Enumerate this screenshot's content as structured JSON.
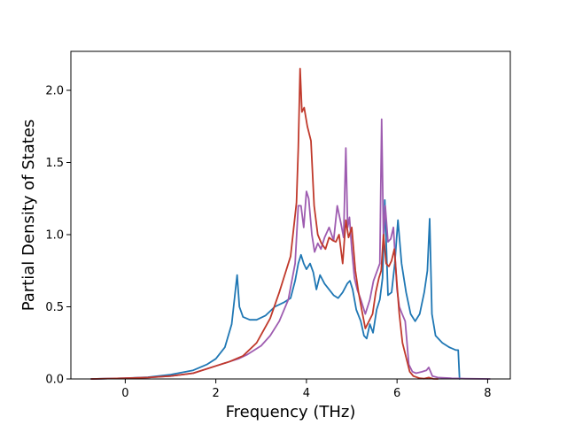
{
  "chart_data": {
    "type": "line",
    "title": "",
    "xlabel": "Frequency (THz)",
    "ylabel": "Partial Density of States",
    "xlim": [
      -1.2,
      8.5
    ],
    "ylim": [
      0,
      2.27
    ],
    "xticks": [
      0,
      2,
      4,
      6,
      8
    ],
    "xtick_labels": [
      "0",
      "2",
      "4",
      "6",
      "8"
    ],
    "yticks": [
      0.0,
      0.5,
      1.0,
      1.5,
      2.0
    ],
    "ytick_labels": [
      "0.0",
      "0.5",
      "1.0",
      "1.5",
      "2.0"
    ],
    "grid": false,
    "legend": "none",
    "series": [
      {
        "color": "#1f77b4",
        "x": [
          -0.75,
          0,
          0.5,
          1.0,
          1.5,
          1.8,
          2.0,
          2.2,
          2.35,
          2.42,
          2.47,
          2.52,
          2.6,
          2.75,
          2.9,
          3.1,
          3.3,
          3.5,
          3.65,
          3.75,
          3.82,
          3.88,
          3.94,
          4.0,
          4.08,
          4.15,
          4.22,
          4.3,
          4.4,
          4.5,
          4.6,
          4.7,
          4.8,
          4.9,
          4.96,
          5.02,
          5.1,
          5.2,
          5.27,
          5.33,
          5.4,
          5.47,
          5.55,
          5.62,
          5.68,
          5.73,
          5.8,
          5.88,
          5.95,
          6.02,
          6.1,
          6.2,
          6.3,
          6.4,
          6.5,
          6.6,
          6.67,
          6.72,
          6.77,
          6.85,
          7.0,
          7.15,
          7.3,
          7.35,
          7.38
        ],
        "y": [
          0.0,
          0.005,
          0.012,
          0.03,
          0.06,
          0.1,
          0.14,
          0.22,
          0.38,
          0.58,
          0.72,
          0.5,
          0.43,
          0.41,
          0.41,
          0.44,
          0.5,
          0.53,
          0.56,
          0.68,
          0.8,
          0.86,
          0.8,
          0.76,
          0.8,
          0.74,
          0.62,
          0.72,
          0.66,
          0.62,
          0.58,
          0.56,
          0.6,
          0.66,
          0.68,
          0.62,
          0.48,
          0.4,
          0.3,
          0.28,
          0.38,
          0.32,
          0.48,
          0.55,
          0.7,
          1.24,
          0.58,
          0.6,
          0.8,
          1.1,
          0.8,
          0.6,
          0.45,
          0.4,
          0.45,
          0.6,
          0.75,
          1.11,
          0.45,
          0.3,
          0.25,
          0.22,
          0.2,
          0.2,
          0.0
        ]
      },
      {
        "color": "#9e5cb0",
        "x": [
          -0.75,
          0,
          0.5,
          1.0,
          1.5,
          2.0,
          2.3,
          2.5,
          2.7,
          3.0,
          3.2,
          3.4,
          3.6,
          3.75,
          3.82,
          3.88,
          3.94,
          4.0,
          4.05,
          4.12,
          4.18,
          4.25,
          4.32,
          4.4,
          4.5,
          4.6,
          4.68,
          4.76,
          4.82,
          4.87,
          4.91,
          4.95,
          5.0,
          5.06,
          5.12,
          5.2,
          5.3,
          5.4,
          5.48,
          5.55,
          5.62,
          5.66,
          5.7,
          5.74,
          5.8,
          5.86,
          5.92,
          6.0,
          6.05,
          6.1,
          6.18,
          6.26,
          6.34,
          6.42,
          6.55,
          6.65,
          6.7,
          6.78,
          6.9,
          7.2,
          7.5,
          8.05
        ],
        "y": [
          0.0,
          0.005,
          0.01,
          0.02,
          0.04,
          0.09,
          0.12,
          0.14,
          0.17,
          0.23,
          0.3,
          0.4,
          0.55,
          0.8,
          1.2,
          1.2,
          1.05,
          1.3,
          1.25,
          1.0,
          0.88,
          0.94,
          0.9,
          0.98,
          1.05,
          0.96,
          1.2,
          1.08,
          0.98,
          1.6,
          1.05,
          1.12,
          0.9,
          0.7,
          0.62,
          0.55,
          0.45,
          0.55,
          0.68,
          0.74,
          0.8,
          1.8,
          0.98,
          1.2,
          0.95,
          0.97,
          1.05,
          0.62,
          0.5,
          0.46,
          0.4,
          0.1,
          0.05,
          0.04,
          0.05,
          0.06,
          0.08,
          0.02,
          0.01,
          0.005,
          0.002,
          0.0
        ]
      },
      {
        "color": "#c0392b",
        "x": [
          -0.75,
          0,
          0.5,
          1.0,
          1.5,
          2.0,
          2.3,
          2.6,
          2.9,
          3.2,
          3.4,
          3.55,
          3.65,
          3.72,
          3.78,
          3.82,
          3.86,
          3.9,
          3.95,
          4.02,
          4.1,
          4.17,
          4.25,
          4.33,
          4.42,
          4.5,
          4.58,
          4.65,
          4.72,
          4.8,
          4.87,
          4.93,
          5.0,
          5.08,
          5.15,
          5.22,
          5.3,
          5.38,
          5.46,
          5.53,
          5.6,
          5.65,
          5.7,
          5.76,
          5.82,
          5.88,
          5.94,
          6.0,
          6.05,
          6.12,
          6.2,
          6.28,
          6.36,
          6.5,
          6.6,
          6.7,
          6.8,
          6.9
        ],
        "y": [
          0.0,
          0.005,
          0.01,
          0.02,
          0.04,
          0.09,
          0.12,
          0.16,
          0.25,
          0.42,
          0.6,
          0.75,
          0.85,
          1.05,
          1.22,
          1.6,
          2.15,
          1.85,
          1.88,
          1.75,
          1.65,
          1.2,
          1.0,
          0.94,
          0.9,
          0.98,
          0.96,
          0.95,
          1.0,
          0.8,
          1.1,
          0.98,
          1.05,
          0.75,
          0.6,
          0.48,
          0.35,
          0.4,
          0.45,
          0.6,
          0.7,
          0.75,
          1.0,
          0.8,
          0.78,
          0.82,
          0.9,
          0.65,
          0.45,
          0.25,
          0.15,
          0.05,
          0.02,
          0.005,
          0.002,
          0.01,
          0.001,
          0.0
        ]
      }
    ]
  }
}
